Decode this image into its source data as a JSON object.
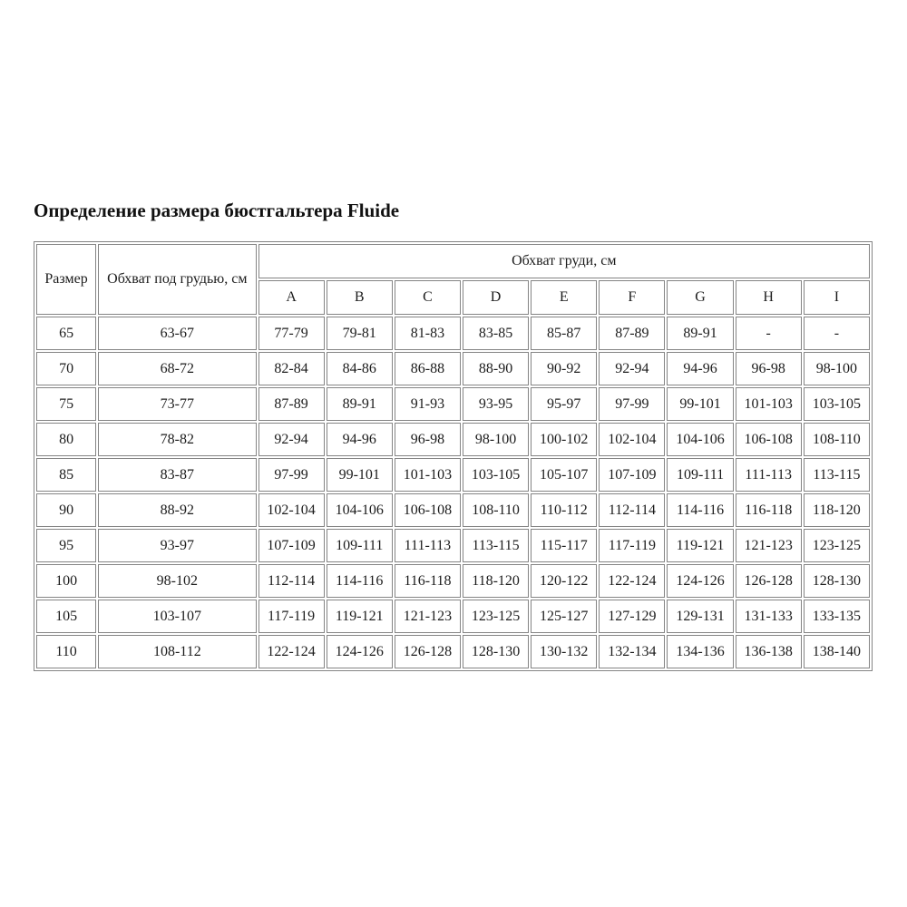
{
  "page": {
    "title": "Определение размера бюстгальтера Fluide"
  },
  "table": {
    "header": {
      "size_label": "Размер",
      "underbust_label": "Обхват под грудью, см",
      "bust_label": "Обхват груди, см",
      "cup_columns": [
        "A",
        "B",
        "C",
        "D",
        "E",
        "F",
        "G",
        "H",
        "I"
      ]
    },
    "rows": [
      {
        "size": "65",
        "underbust": "63-67",
        "cups": [
          "77-79",
          "79-81",
          "81-83",
          "83-85",
          "85-87",
          "87-89",
          "89-91",
          "-",
          "-"
        ]
      },
      {
        "size": "70",
        "underbust": "68-72",
        "cups": [
          "82-84",
          "84-86",
          "86-88",
          "88-90",
          "90-92",
          "92-94",
          "94-96",
          "96-98",
          "98-100"
        ]
      },
      {
        "size": "75",
        "underbust": "73-77",
        "cups": [
          "87-89",
          "89-91",
          "91-93",
          "93-95",
          "95-97",
          "97-99",
          "99-101",
          "101-103",
          "103-105"
        ]
      },
      {
        "size": "80",
        "underbust": "78-82",
        "cups": [
          "92-94",
          "94-96",
          "96-98",
          "98-100",
          "100-102",
          "102-104",
          "104-106",
          "106-108",
          "108-110"
        ]
      },
      {
        "size": "85",
        "underbust": "83-87",
        "cups": [
          "97-99",
          "99-101",
          "101-103",
          "103-105",
          "105-107",
          "107-109",
          "109-111",
          "111-113",
          "113-115"
        ]
      },
      {
        "size": "90",
        "underbust": "88-92",
        "cups": [
          "102-104",
          "104-106",
          "106-108",
          "108-110",
          "110-112",
          "112-114",
          "114-116",
          "116-118",
          "118-120"
        ]
      },
      {
        "size": "95",
        "underbust": "93-97",
        "cups": [
          "107-109",
          "109-111",
          "111-113",
          "113-115",
          "115-117",
          "117-119",
          "119-121",
          "121-123",
          "123-125"
        ]
      },
      {
        "size": "100",
        "underbust": "98-102",
        "cups": [
          "112-114",
          "114-116",
          "116-118",
          "118-120",
          "120-122",
          "122-124",
          "124-126",
          "126-128",
          "128-130"
        ]
      },
      {
        "size": "105",
        "underbust": "103-107",
        "cups": [
          "117-119",
          "119-121",
          "121-123",
          "123-125",
          "125-127",
          "127-129",
          "129-131",
          "131-133",
          "133-135"
        ]
      },
      {
        "size": "110",
        "underbust": "108-112",
        "cups": [
          "122-124",
          "124-126",
          "126-128",
          "128-130",
          "130-132",
          "132-134",
          "134-136",
          "136-138",
          "138-140"
        ]
      }
    ]
  }
}
